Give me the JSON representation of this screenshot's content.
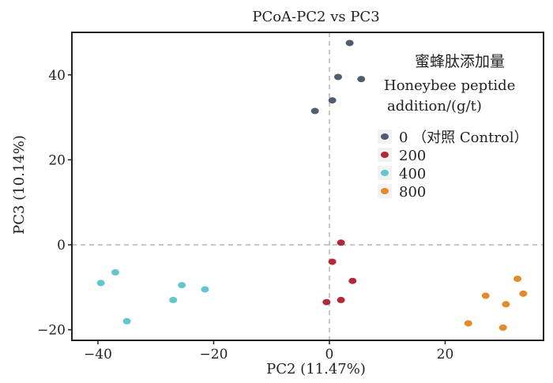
{
  "chart_data": {
    "type": "scatter",
    "title": "PCoA-PC2 vs PC3",
    "xlabel": "PC2 (11.47%)",
    "ylabel": "PC3 (10.14%)",
    "xlim": [
      -44.5,
      37
    ],
    "ylim": [
      -22.5,
      50
    ],
    "xticks": [
      -40,
      -20,
      0,
      20
    ],
    "yticks": [
      -20,
      0,
      20,
      40
    ],
    "reference_lines": {
      "x": 0,
      "y": 0,
      "style": "dashed"
    },
    "grid": false,
    "legend": {
      "placement": "top-right",
      "title_cn": "蜜蜂肽添加量",
      "title_en_line1": "Honeybee peptide",
      "title_en_line2": "addition/(g/t)"
    },
    "series": [
      {
        "name": "0 （对照 Control）",
        "color": "#4f5d6e",
        "points": [
          [
            3.5,
            47.5
          ],
          [
            1.5,
            39.5
          ],
          [
            5.5,
            39
          ],
          [
            0.5,
            34
          ],
          [
            -2.5,
            31.5
          ]
        ]
      },
      {
        "name": "200",
        "color": "#b22a3a",
        "points": [
          [
            2,
            0.5
          ],
          [
            0.5,
            -4
          ],
          [
            4,
            -8.5
          ],
          [
            2,
            -13
          ],
          [
            -0.5,
            -13.5
          ]
        ]
      },
      {
        "name": "400",
        "color": "#62c6cc",
        "points": [
          [
            -37,
            -6.5
          ],
          [
            -39.5,
            -9
          ],
          [
            -25.5,
            -9.5
          ],
          [
            -21.5,
            -10.5
          ],
          [
            -27,
            -13
          ],
          [
            -35,
            -18
          ]
        ]
      },
      {
        "name": "800",
        "color": "#e38b2a",
        "points": [
          [
            32.5,
            -8
          ],
          [
            27,
            -12
          ],
          [
            33.5,
            -11.5
          ],
          [
            30.5,
            -14
          ],
          [
            24,
            -18.5
          ],
          [
            30,
            -19.5
          ]
        ]
      }
    ]
  }
}
